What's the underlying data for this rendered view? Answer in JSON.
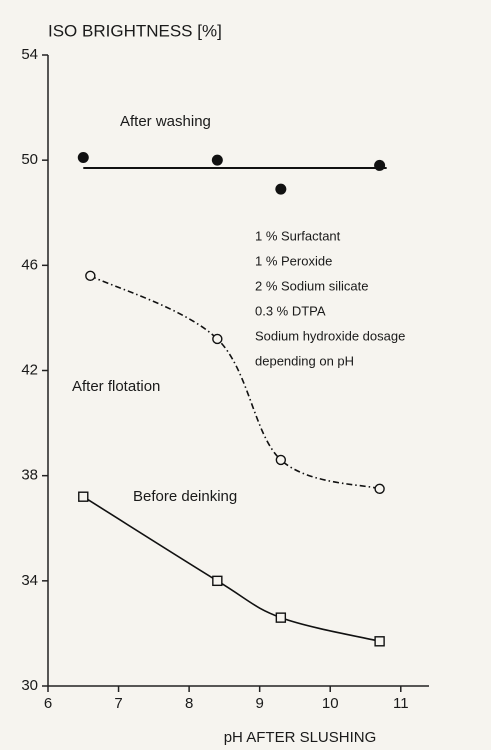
{
  "chart_data": {
    "type": "line",
    "title": "ISO BRIGHTNESS [%]",
    "x_label": "pH AFTER SLUSHING",
    "xlim": [
      6,
      11.4
    ],
    "xticks": [
      6,
      7,
      8,
      9,
      10,
      11
    ],
    "ylim": [
      30,
      54
    ],
    "yticks": [
      30,
      34,
      38,
      42,
      46,
      50,
      54
    ],
    "notes": [
      "1 % Surfactant",
      "1 % Peroxide",
      "2 % Sodium silicate",
      "0.3 % DTPA",
      "Sodium hydroxide dosage",
      "depending on pH"
    ],
    "series": [
      {
        "name": "After washing",
        "color": "#111111",
        "marker": "filled-circle",
        "line": "none",
        "x": [
          6.5,
          8.4,
          9.3,
          10.7
        ],
        "values": [
          50.1,
          50.0,
          48.9,
          49.8
        ],
        "fit_x": [
          6.5,
          10.8
        ],
        "fit_values": [
          49.7,
          49.7
        ]
      },
      {
        "name": "After flotation",
        "color": "#111111",
        "marker": "open-circle",
        "line": "dashdot",
        "x": [
          6.6,
          8.4,
          9.3,
          10.7
        ],
        "values": [
          45.6,
          43.2,
          38.6,
          37.5
        ]
      },
      {
        "name": "Before deinking",
        "color": "#111111",
        "marker": "open-square",
        "line": "solid",
        "x": [
          6.5,
          8.4,
          9.3,
          10.7
        ],
        "values": [
          37.2,
          34.0,
          32.6,
          31.7
        ]
      }
    ]
  }
}
